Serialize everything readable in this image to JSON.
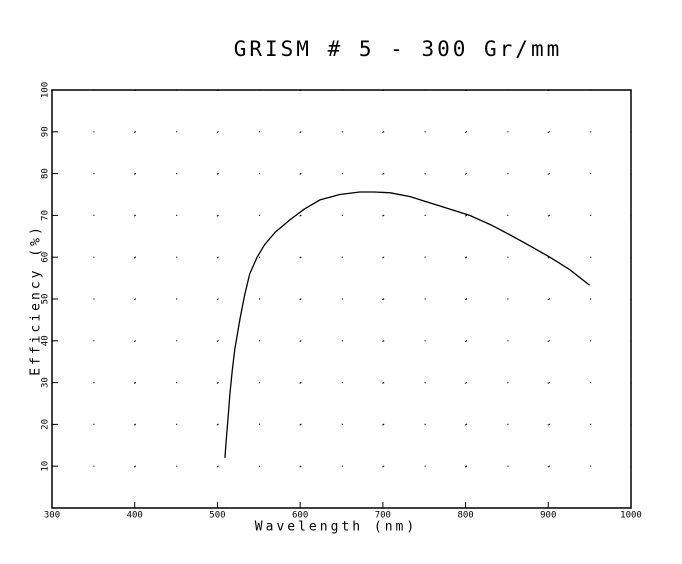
{
  "chart_data": {
    "type": "line",
    "title": "GRISM # 5  -  300 Gr/mm",
    "x_label": "Wavelength (nm)",
    "y_label": "Efficiency (%)",
    "x": [
      509,
      511,
      513,
      515,
      518,
      521,
      527,
      533,
      539,
      548,
      557,
      570,
      588,
      605,
      624,
      648,
      672,
      690,
      709,
      733,
      757,
      781,
      805,
      830,
      854,
      878,
      902,
      926,
      950
    ],
    "series": [
      {
        "name": "Efficiency",
        "color": "#000000",
        "values": [
          12,
          17,
          22,
          27,
          33,
          38,
          45,
          51,
          56,
          60,
          63,
          66,
          69,
          71.5,
          73.7,
          75,
          75.6,
          75.6,
          75.4,
          74.5,
          73,
          71.5,
          70,
          67.8,
          65.3,
          62.7,
          60,
          57,
          53.3
        ]
      }
    ],
    "xlim": [
      300,
      1000
    ],
    "ylim": [
      0,
      100
    ],
    "xticks": [
      300,
      400,
      500,
      600,
      700,
      800,
      900,
      1000
    ],
    "yticks": [
      10,
      20,
      30,
      40,
      50,
      60,
      70,
      80,
      90,
      100
    ],
    "grid": true
  }
}
